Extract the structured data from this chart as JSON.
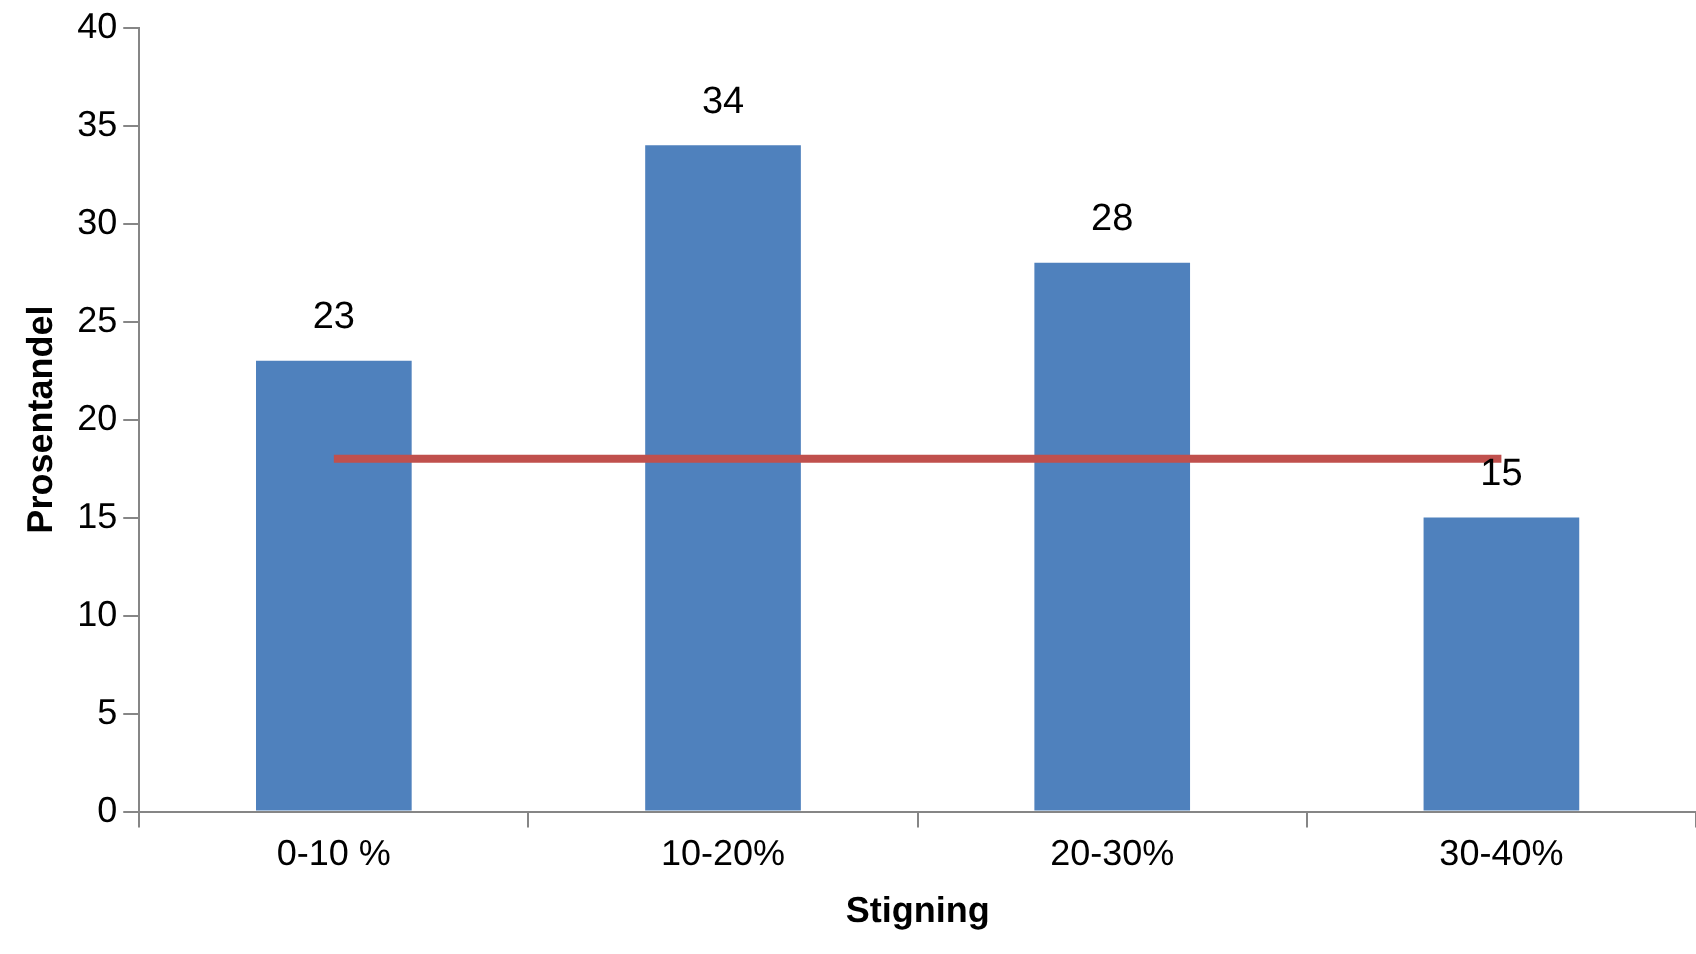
{
  "chart_data": {
    "type": "bar",
    "xlabel": "Stigning",
    "ylabel": "Prosentandel",
    "categories": [
      "0-10 %",
      "10-20%",
      "20-30%",
      "30-40%"
    ],
    "series": [
      {
        "color": "#4f81bd",
        "values": [
          23,
          34,
          28,
          15
        ],
        "value_labels": [
          "23",
          "34",
          "28",
          "15"
        ]
      },
      {
        "type": "line",
        "color": "#c0504d",
        "values": [
          18,
          18,
          18,
          18
        ],
        "marker": "none"
      }
    ],
    "ylim": [
      0,
      40
    ],
    "yticks": [
      0,
      5,
      10,
      15,
      20,
      25,
      30,
      35,
      40
    ],
    "grid": false,
    "legend": false
  }
}
